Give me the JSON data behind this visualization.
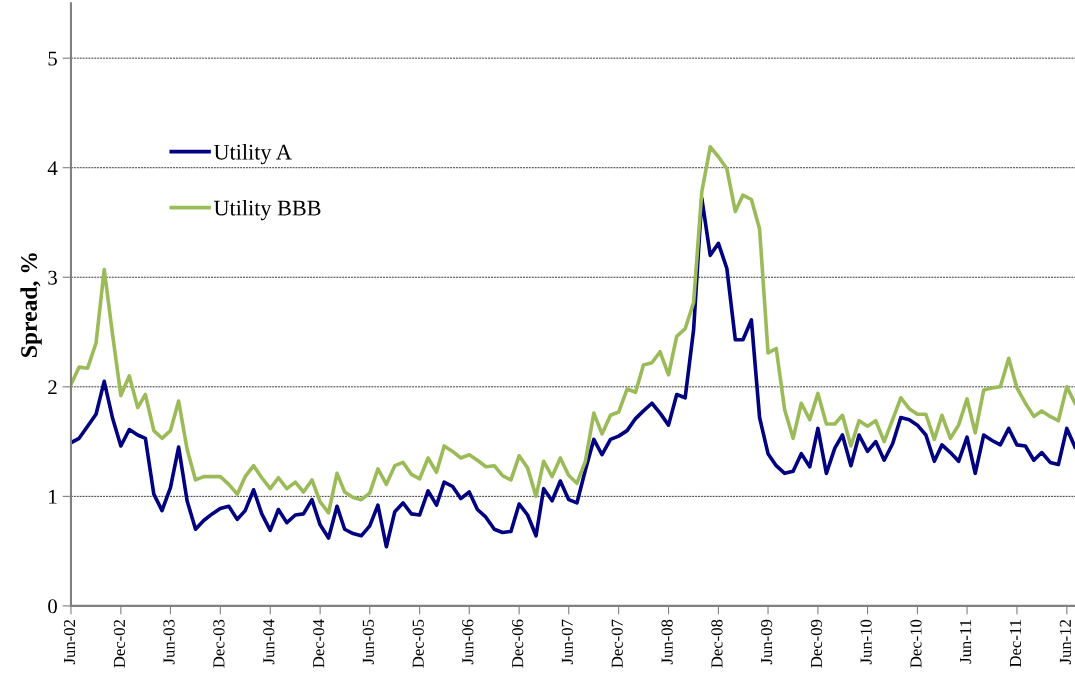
{
  "chart_data": {
    "type": "line",
    "ylabel": "Spread, %",
    "x": [
      "2002-06",
      "2002-07",
      "2002-08",
      "2002-09",
      "2002-10",
      "2002-11",
      "2002-12",
      "2003-01",
      "2003-02",
      "2003-03",
      "2003-04",
      "2003-05",
      "2003-06",
      "2003-07",
      "2003-08",
      "2003-09",
      "2003-10",
      "2003-11",
      "2003-12",
      "2004-01",
      "2004-02",
      "2004-03",
      "2004-04",
      "2004-05",
      "2004-06",
      "2004-07",
      "2004-08",
      "2004-09",
      "2004-10",
      "2004-11",
      "2004-12",
      "2005-01",
      "2005-02",
      "2005-03",
      "2005-04",
      "2005-05",
      "2005-06",
      "2005-07",
      "2005-08",
      "2005-09",
      "2005-10",
      "2005-11",
      "2005-12",
      "2006-01",
      "2006-02",
      "2006-03",
      "2006-04",
      "2006-05",
      "2006-06",
      "2006-07",
      "2006-08",
      "2006-09",
      "2006-10",
      "2006-11",
      "2006-12",
      "2007-01",
      "2007-02",
      "2007-03",
      "2007-04",
      "2007-05",
      "2007-06",
      "2007-07",
      "2007-08",
      "2007-09",
      "2007-10",
      "2007-11",
      "2007-12",
      "2008-01",
      "2008-02",
      "2008-03",
      "2008-04",
      "2008-05",
      "2008-06",
      "2008-07",
      "2008-08",
      "2008-09",
      "2008-10",
      "2008-11",
      "2008-12",
      "2009-01",
      "2009-02",
      "2009-03",
      "2009-04",
      "2009-05",
      "2009-06",
      "2009-07",
      "2009-08",
      "2009-09",
      "2009-10",
      "2009-11",
      "2009-12",
      "2010-01",
      "2010-02",
      "2010-03",
      "2010-04",
      "2010-05",
      "2010-06",
      "2010-07",
      "2010-08",
      "2010-09",
      "2010-10",
      "2010-11",
      "2010-12",
      "2011-01",
      "2011-02",
      "2011-03",
      "2011-04",
      "2011-05",
      "2011-06",
      "2011-07",
      "2011-08",
      "2011-09",
      "2011-10",
      "2011-11",
      "2011-12",
      "2012-01",
      "2012-02",
      "2012-03",
      "2012-04",
      "2012-05",
      "2012-06",
      "2012-07"
    ],
    "series": [
      {
        "name": "Utility A",
        "color": "#000080",
        "values": [
          1.49,
          1.53,
          1.64,
          1.75,
          2.05,
          1.71,
          1.46,
          1.61,
          1.56,
          1.53,
          1.02,
          0.87,
          1.08,
          1.45,
          0.96,
          0.7,
          0.78,
          0.84,
          0.89,
          0.91,
          0.79,
          0.87,
          1.06,
          0.84,
          0.69,
          0.88,
          0.76,
          0.83,
          0.84,
          0.97,
          0.74,
          0.62,
          0.91,
          0.7,
          0.66,
          0.64,
          0.73,
          0.92,
          0.54,
          0.86,
          0.94,
          0.84,
          0.83,
          1.05,
          0.92,
          1.13,
          1.09,
          0.98,
          1.04,
          0.88,
          0.81,
          0.7,
          0.67,
          0.68,
          0.93,
          0.83,
          0.64,
          1.07,
          0.96,
          1.14,
          0.97,
          0.94,
          1.24,
          1.52,
          1.38,
          1.52,
          1.55,
          1.6,
          1.71,
          1.78,
          1.85,
          1.76,
          1.65,
          1.93,
          1.9,
          2.52,
          3.72,
          3.2,
          3.31,
          3.08,
          2.43,
          2.43,
          2.61,
          1.72,
          1.39,
          1.28,
          1.21,
          1.23,
          1.39,
          1.27,
          1.62,
          1.21,
          1.44,
          1.56,
          1.28,
          1.56,
          1.41,
          1.5,
          1.33,
          1.48,
          1.72,
          1.7,
          1.65,
          1.56,
          1.32,
          1.47,
          1.4,
          1.32,
          1.54,
          1.21,
          1.56,
          1.51,
          1.47,
          1.62,
          1.47,
          1.46,
          1.33,
          1.4,
          1.31,
          1.29,
          1.62,
          1.45
        ]
      },
      {
        "name": "Utility BBB",
        "color": "#9bbb59",
        "values": [
          2.02,
          2.18,
          2.17,
          2.4,
          3.07,
          2.47,
          1.92,
          2.1,
          1.81,
          1.93,
          1.6,
          1.53,
          1.6,
          1.87,
          1.43,
          1.15,
          1.18,
          1.18,
          1.18,
          1.11,
          1.02,
          1.18,
          1.28,
          1.17,
          1.07,
          1.17,
          1.07,
          1.13,
          1.04,
          1.15,
          0.95,
          0.85,
          1.21,
          1.04,
          0.99,
          0.97,
          1.03,
          1.25,
          1.11,
          1.28,
          1.31,
          1.2,
          1.16,
          1.35,
          1.22,
          1.46,
          1.41,
          1.35,
          1.38,
          1.33,
          1.27,
          1.28,
          1.19,
          1.15,
          1.37,
          1.26,
          1.0,
          1.32,
          1.18,
          1.35,
          1.19,
          1.12,
          1.32,
          1.76,
          1.57,
          1.74,
          1.77,
          1.98,
          1.95,
          2.2,
          2.22,
          2.32,
          2.11,
          2.46,
          2.53,
          2.77,
          3.78,
          4.19,
          4.1,
          3.99,
          3.6,
          3.75,
          3.71,
          3.44,
          2.31,
          2.35,
          1.79,
          1.53,
          1.85,
          1.7,
          1.94,
          1.66,
          1.66,
          1.74,
          1.46,
          1.69,
          1.64,
          1.69,
          1.5,
          1.7,
          1.9,
          1.8,
          1.75,
          1.75,
          1.52,
          1.74,
          1.53,
          1.65,
          1.89,
          1.58,
          1.97,
          1.99,
          2.0,
          2.26,
          1.99,
          1.85,
          1.73,
          1.78,
          1.73,
          1.69,
          2.0,
          1.85
        ]
      }
    ],
    "xlim": [
      "2002-06",
      "2012-07"
    ],
    "xticks": [
      {
        "value": "2002-06",
        "label": "Jun-02"
      },
      {
        "value": "2002-12",
        "label": "Dec-02"
      },
      {
        "value": "2003-06",
        "label": "Jun-03"
      },
      {
        "value": "2003-12",
        "label": "Dec-03"
      },
      {
        "value": "2004-06",
        "label": "Jun-04"
      },
      {
        "value": "2004-12",
        "label": "Dec-04"
      },
      {
        "value": "2005-06",
        "label": "Jun-05"
      },
      {
        "value": "2005-12",
        "label": "Dec-05"
      },
      {
        "value": "2006-06",
        "label": "Jun-06"
      },
      {
        "value": "2006-12",
        "label": "Dec-06"
      },
      {
        "value": "2007-06",
        "label": "Jun-07"
      },
      {
        "value": "2007-12",
        "label": "Dec-07"
      },
      {
        "value": "2008-06",
        "label": "Jun-08"
      },
      {
        "value": "2008-12",
        "label": "Dec-08"
      },
      {
        "value": "2009-06",
        "label": "Jun-09"
      },
      {
        "value": "2009-12",
        "label": "Dec-09"
      },
      {
        "value": "2010-06",
        "label": "Jun-10"
      },
      {
        "value": "2010-12",
        "label": "Dec-10"
      },
      {
        "value": "2011-06",
        "label": "Jun-11"
      },
      {
        "value": "2011-12",
        "label": "Dec-11"
      },
      {
        "value": "2012-06",
        "label": "Jun-12"
      }
    ],
    "ylim": [
      0,
      5.5
    ],
    "yticks": [
      0,
      1,
      2,
      3,
      4,
      5
    ],
    "grid": "y",
    "legend": "top left",
    "marker": "none",
    "line_style": "solid"
  }
}
